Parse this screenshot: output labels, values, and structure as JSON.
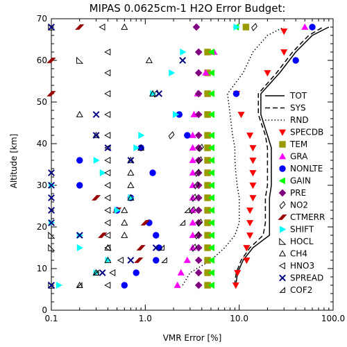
{
  "chart_data": {
    "type": "scatter",
    "title": "MIPAS 0.0625cm-1 H2O Error Budget:",
    "xlabel": "VMR Error [%]",
    "ylabel": "Altitude [km]",
    "xscale": "log",
    "xlim": [
      0.1,
      100.0
    ],
    "ylim": [
      0,
      70
    ],
    "xticks": [
      0.1,
      1.0,
      10.0,
      100.0
    ],
    "xtick_labels": [
      "0.1",
      "1.0",
      "10.0",
      "100.0"
    ],
    "yticks": [
      0,
      10,
      20,
      30,
      40,
      50,
      60,
      70
    ],
    "ytick_labels": [
      "0",
      "10",
      "20",
      "30",
      "40",
      "50",
      "60",
      "70"
    ],
    "grid": false,
    "legend": "right",
    "lines": [
      {
        "name": "TOT",
        "style": "solid",
        "points": [
          [
            9.2,
            6
          ],
          [
            9.6,
            9
          ],
          [
            11,
            12
          ],
          [
            14,
            15
          ],
          [
            21,
            18
          ],
          [
            21,
            21
          ],
          [
            21,
            24
          ],
          [
            21,
            27
          ],
          [
            22,
            30
          ],
          [
            22,
            33
          ],
          [
            22,
            36
          ],
          [
            22,
            39
          ],
          [
            20,
            42
          ],
          [
            17,
            47
          ],
          [
            17,
            52
          ],
          [
            27,
            57
          ],
          [
            40,
            62
          ],
          [
            60,
            66
          ],
          [
            90,
            68
          ]
        ]
      },
      {
        "name": "SYS",
        "style": "dashed",
        "points": [
          [
            8.9,
            6
          ],
          [
            9.3,
            9
          ],
          [
            10.5,
            12
          ],
          [
            13,
            15
          ],
          [
            18,
            18
          ],
          [
            19,
            21
          ],
          [
            19,
            24
          ],
          [
            19,
            27
          ],
          [
            20,
            30
          ],
          [
            20,
            33
          ],
          [
            20,
            36
          ],
          [
            20,
            39
          ],
          [
            19,
            42
          ],
          [
            16,
            47
          ],
          [
            16,
            52
          ],
          [
            25,
            57
          ],
          [
            37,
            62
          ],
          [
            55,
            66
          ],
          [
            78,
            68
          ]
        ]
      },
      {
        "name": "RND",
        "style": "dotted",
        "points": [
          [
            2.5,
            6
          ],
          [
            3,
            9
          ],
          [
            5,
            12
          ],
          [
            7,
            15
          ],
          [
            9,
            18
          ],
          [
            10,
            21
          ],
          [
            10,
            24
          ],
          [
            10,
            27
          ],
          [
            9.5,
            30
          ],
          [
            9.2,
            33
          ],
          [
            9,
            36
          ],
          [
            9,
            39
          ],
          [
            8.5,
            42
          ],
          [
            8,
            47
          ],
          [
            7.5,
            52
          ],
          [
            11,
            57
          ],
          [
            14,
            62
          ],
          [
            20,
            66
          ],
          [
            30,
            68
          ]
        ]
      }
    ],
    "series": [
      {
        "name": "SPECDB",
        "marker": "triangle-down-filled",
        "color": "#ff0000",
        "points": [
          [
            9.2,
            6
          ],
          [
            9.6,
            9
          ],
          [
            12,
            12
          ],
          [
            12,
            15
          ],
          [
            13,
            18
          ],
          [
            13,
            21
          ],
          [
            13,
            24
          ],
          [
            14,
            27
          ],
          [
            14,
            30
          ],
          [
            14,
            33
          ],
          [
            14,
            36
          ],
          [
            14,
            39
          ],
          [
            13,
            42
          ],
          [
            10.5,
            47
          ],
          [
            9.4,
            52
          ],
          [
            20,
            57
          ],
          [
            30,
            62
          ],
          [
            30,
            67
          ]
        ]
      },
      {
        "name": "TEM",
        "marker": "square-filled",
        "color": "#999900",
        "points": [
          [
            4.6,
            6
          ],
          [
            4.6,
            9
          ],
          [
            4.6,
            12
          ],
          [
            4.6,
            15
          ],
          [
            4.6,
            18
          ],
          [
            4.6,
            21
          ],
          [
            4.6,
            24
          ],
          [
            4.6,
            27
          ],
          [
            4.6,
            30
          ],
          [
            4.6,
            33
          ],
          [
            4.6,
            36
          ],
          [
            4.6,
            39
          ],
          [
            4.6,
            42
          ],
          [
            4.6,
            47
          ],
          [
            4.6,
            52
          ],
          [
            4.6,
            57
          ],
          [
            4.6,
            62
          ],
          [
            11.8,
            68
          ]
        ]
      },
      {
        "name": "GRA",
        "marker": "triangle-up-filled",
        "color": "#ff00ff",
        "points": [
          [
            2.2,
            6
          ],
          [
            2.4,
            9
          ],
          [
            2.8,
            12
          ],
          [
            3.2,
            15
          ],
          [
            3.2,
            18
          ],
          [
            3.2,
            21
          ],
          [
            3.2,
            24
          ],
          [
            3.2,
            27
          ],
          [
            3.2,
            30
          ],
          [
            3.2,
            33
          ],
          [
            3.2,
            36
          ],
          [
            3.2,
            39
          ],
          [
            3.2,
            42
          ],
          [
            3.3,
            47
          ],
          [
            3.6,
            52
          ],
          [
            4.4,
            57
          ],
          [
            5.4,
            62
          ],
          [
            50,
            68
          ]
        ]
      },
      {
        "name": "NONLTE",
        "marker": "circle-filled",
        "color": "#0000ff",
        "points": [
          [
            0.6,
            6
          ],
          [
            0.8,
            9
          ],
          [
            1.3,
            12
          ],
          [
            1.4,
            15
          ],
          [
            1.3,
            18
          ],
          [
            1.1,
            21
          ],
          [
            0.5,
            24
          ],
          [
            0.7,
            27
          ],
          [
            0.2,
            30
          ],
          [
            1.2,
            33
          ],
          [
            0.2,
            36
          ],
          [
            0.9,
            39
          ],
          [
            2.8,
            42
          ],
          [
            2.3,
            47
          ],
          [
            9.3,
            52
          ],
          [
            40,
            60
          ],
          [
            60,
            68
          ]
        ]
      },
      {
        "name": "GAIN",
        "marker": "triangle-left-filled",
        "color": "#00ff00",
        "points": [
          [
            5.1,
            6
          ],
          [
            5.1,
            9
          ],
          [
            5.1,
            12
          ],
          [
            5.1,
            15
          ],
          [
            5.1,
            18
          ],
          [
            5.1,
            21
          ],
          [
            5.1,
            24
          ],
          [
            5.1,
            27
          ],
          [
            5.1,
            30
          ],
          [
            5.1,
            33
          ],
          [
            5.1,
            36
          ],
          [
            5.1,
            39
          ],
          [
            5.1,
            42
          ],
          [
            5.1,
            47
          ],
          [
            5.1,
            52
          ],
          [
            5.1,
            57
          ],
          [
            5.1,
            62
          ],
          [
            9.3,
            68
          ]
        ]
      },
      {
        "name": "PRE",
        "marker": "diamond-filled",
        "color": "#800080",
        "points": [
          [
            3.7,
            6
          ],
          [
            3.7,
            9
          ],
          [
            3.7,
            12
          ],
          [
            3.7,
            15
          ],
          [
            3.7,
            18
          ],
          [
            3.7,
            21
          ],
          [
            3.7,
            24
          ],
          [
            3.7,
            27
          ],
          [
            3.7,
            30
          ],
          [
            3.7,
            33
          ],
          [
            3.7,
            36
          ],
          [
            3.7,
            39
          ],
          [
            3.7,
            42
          ],
          [
            3.7,
            47
          ],
          [
            3.7,
            52
          ],
          [
            3.7,
            57
          ],
          [
            3.7,
            62
          ],
          [
            3.5,
            68
          ]
        ]
      },
      {
        "name": "NO2",
        "marker": "parallelogram-open",
        "color": "#000000",
        "points": [
          [
            3.3,
            15
          ],
          [
            3.6,
            18
          ],
          [
            3.8,
            21
          ],
          [
            3.2,
            24
          ],
          [
            3.3,
            27
          ],
          [
            3.5,
            30
          ],
          [
            3.6,
            33
          ],
          [
            3.8,
            36
          ],
          [
            3.9,
            39
          ],
          [
            1.9,
            42
          ],
          [
            1.3,
            52
          ],
          [
            14.5,
            68
          ]
        ]
      },
      {
        "name": "CTMERR",
        "marker": "parallelogram-filled",
        "color": "#990000",
        "points": [
          [
            0.85,
            12
          ],
          [
            0.9,
            15
          ],
          [
            0.35,
            18
          ],
          [
            1.0,
            21
          ],
          [
            0.5,
            24
          ],
          [
            0.3,
            27
          ],
          [
            0.1,
            52
          ],
          [
            0.1,
            60
          ],
          [
            0.2,
            68
          ]
        ]
      },
      {
        "name": "SHIFT",
        "marker": "triangle-right-filled",
        "color": "#00ffff",
        "points": [
          [
            0.12,
            6
          ],
          [
            0.3,
            9
          ],
          [
            0.4,
            12
          ],
          [
            0.2,
            15
          ],
          [
            0.2,
            18
          ],
          [
            0.1,
            21
          ],
          [
            0.5,
            24
          ],
          [
            0.7,
            27
          ],
          [
            0.1,
            30
          ],
          [
            0.35,
            33
          ],
          [
            0.3,
            36
          ],
          [
            0.8,
            39
          ],
          [
            0.9,
            42
          ],
          [
            2.1,
            47
          ],
          [
            1.2,
            52
          ],
          [
            1.9,
            57
          ],
          [
            2.5,
            62
          ],
          [
            9.3,
            68
          ]
        ]
      },
      {
        "name": "HOCL",
        "marker": "triangle-corner-open",
        "color": "#000000",
        "points": [
          [
            0.1,
            6
          ],
          [
            0.1,
            15
          ],
          [
            0.1,
            18
          ],
          [
            0.2,
            60
          ],
          [
            0.1,
            68
          ]
        ]
      },
      {
        "name": "CH4",
        "marker": "triangle-up-open",
        "color": "#000000",
        "points": [
          [
            0.2,
            6
          ],
          [
            0.3,
            9
          ],
          [
            0.4,
            12
          ],
          [
            0.4,
            15
          ],
          [
            0.6,
            18
          ],
          [
            0.6,
            21
          ],
          [
            0.6,
            24
          ],
          [
            0.7,
            27
          ],
          [
            0.7,
            30
          ],
          [
            0.7,
            33
          ],
          [
            0.7,
            36
          ],
          [
            0.9,
            39
          ],
          [
            0.3,
            42
          ],
          [
            0.2,
            47
          ],
          [
            1.2,
            52
          ],
          [
            1.1,
            60
          ],
          [
            0.6,
            68
          ]
        ]
      },
      {
        "name": "HNO3",
        "marker": "triangle-left-open",
        "color": "#000000",
        "points": [
          [
            0.4,
            6
          ],
          [
            0.45,
            9
          ],
          [
            0.55,
            12
          ],
          [
            0.4,
            15
          ],
          [
            0.4,
            18
          ],
          [
            0.4,
            21
          ],
          [
            0.4,
            24
          ],
          [
            0.4,
            27
          ],
          [
            0.4,
            30
          ],
          [
            0.4,
            33
          ],
          [
            0.4,
            36
          ],
          [
            0.4,
            39
          ],
          [
            0.4,
            42
          ],
          [
            0.4,
            47
          ],
          [
            0.4,
            52
          ],
          [
            0.4,
            57
          ],
          [
            0.4,
            62
          ],
          [
            0.35,
            68
          ]
        ]
      },
      {
        "name": "SPREAD",
        "marker": "x",
        "color": "#000080",
        "points": [
          [
            0.1,
            6
          ],
          [
            0.35,
            9
          ],
          [
            0.7,
            12
          ],
          [
            1.3,
            15
          ],
          [
            0.2,
            18
          ],
          [
            0.1,
            21
          ],
          [
            0.1,
            24
          ],
          [
            0.1,
            27
          ],
          [
            0.1,
            30
          ],
          [
            0.1,
            33
          ],
          [
            0.7,
            36
          ],
          [
            0.4,
            39
          ],
          [
            0.3,
            42
          ],
          [
            0.3,
            47
          ],
          [
            1.4,
            52
          ],
          [
            2.5,
            60
          ],
          [
            0.1,
            68
          ]
        ]
      },
      {
        "name": "COF2",
        "marker": "triangle-corner-open-small",
        "color": "#000000",
        "points": [
          [
            0.2,
            6
          ],
          [
            0.3,
            9
          ],
          [
            1.6,
            12
          ],
          [
            1.5,
            15
          ],
          [
            2.5,
            21
          ],
          [
            2.8,
            24
          ]
        ]
      }
    ]
  }
}
